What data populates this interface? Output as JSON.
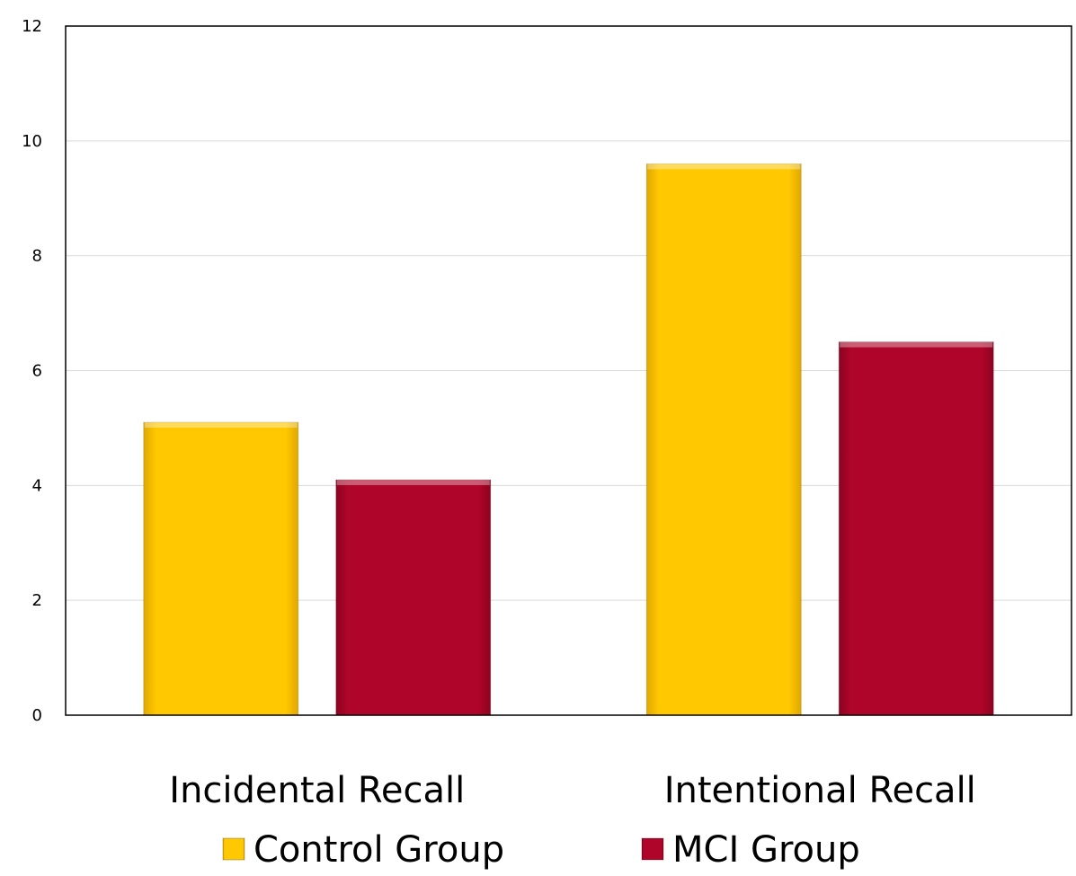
{
  "chart_data": {
    "type": "bar",
    "title": "",
    "xlabel": "",
    "ylabel": "",
    "categories": [
      "Incidental Recall",
      "Intentional Recall"
    ],
    "series": [
      {
        "name": "Control Group",
        "values": [
          5.1,
          9.6
        ],
        "color": "#FFC800"
      },
      {
        "name": "MCI Group",
        "values": [
          4.1,
          6.5
        ],
        "color": "#B0052A"
      }
    ],
    "ylim": [
      0,
      12
    ],
    "yticks": [
      0,
      2,
      4,
      6,
      8,
      10,
      12
    ],
    "grid": true,
    "legend_position": "bottom"
  }
}
